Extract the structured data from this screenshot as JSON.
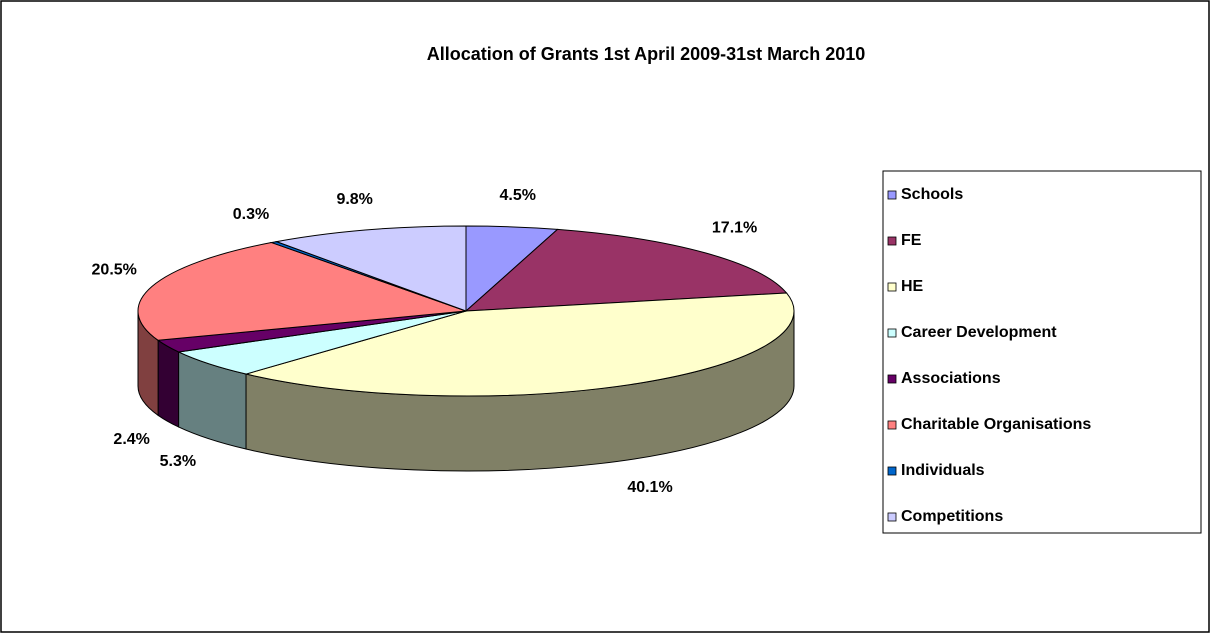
{
  "chart_data": {
    "type": "pie",
    "title": "Allocation of Grants 1st April 2009-31st March 2010",
    "categories": [
      "Schools",
      "FE",
      "HE",
      "Career Development",
      "Associations",
      "Charitable Organisations",
      "Individuals",
      "Competitions"
    ],
    "values": [
      4.5,
      17.1,
      40.1,
      5.3,
      2.4,
      20.5,
      0.3,
      9.8
    ],
    "value_labels": [
      "4.5%",
      "17.1%",
      "40.1%",
      "5.3%",
      "2.4%",
      "20.5%",
      "0.3%",
      "9.8%"
    ],
    "colors": [
      "#9999ff",
      "#993366",
      "#ffffcc",
      "#ccffff",
      "#660066",
      "#ff8080",
      "#0066cc",
      "#ccccff"
    ]
  }
}
